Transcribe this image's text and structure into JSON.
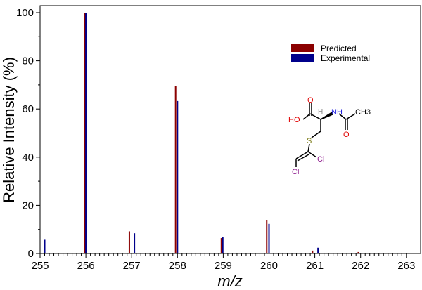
{
  "chart_data": {
    "type": "bar",
    "title": "",
    "xlabel": "m/z",
    "ylabel": "Relative Intensity (%)",
    "xlim": [
      255,
      263
    ],
    "ylim": [
      0,
      100
    ],
    "xticks": [
      "255",
      "256",
      "257",
      "258",
      "259",
      "260",
      "261",
      "262",
      "263"
    ],
    "yticks": [
      "0",
      "20",
      "40",
      "60",
      "80",
      "100"
    ],
    "legend_position": "top-right",
    "series": [
      {
        "name": "Predicted",
        "color": "#8b0000",
        "x": [
          255.98,
          256.95,
          257.96,
          258.96,
          259.95,
          260.95,
          261.95
        ],
        "values": [
          100,
          9.2,
          69.5,
          6.4,
          13.9,
          1.2,
          0.6
        ]
      },
      {
        "name": "Experimental",
        "color": "#00008b",
        "x": [
          255.1,
          256.0,
          257.06,
          258.0,
          258.99,
          260.0,
          261.07
        ],
        "values": [
          5.7,
          100,
          8.4,
          63.3,
          6.7,
          12.3,
          2.4
        ]
      }
    ],
    "annotation": {
      "molecule_labels": [
        "O",
        "HO",
        "H",
        "NH",
        "CH3",
        "O",
        "S",
        "Cl",
        "Cl"
      ]
    }
  }
}
